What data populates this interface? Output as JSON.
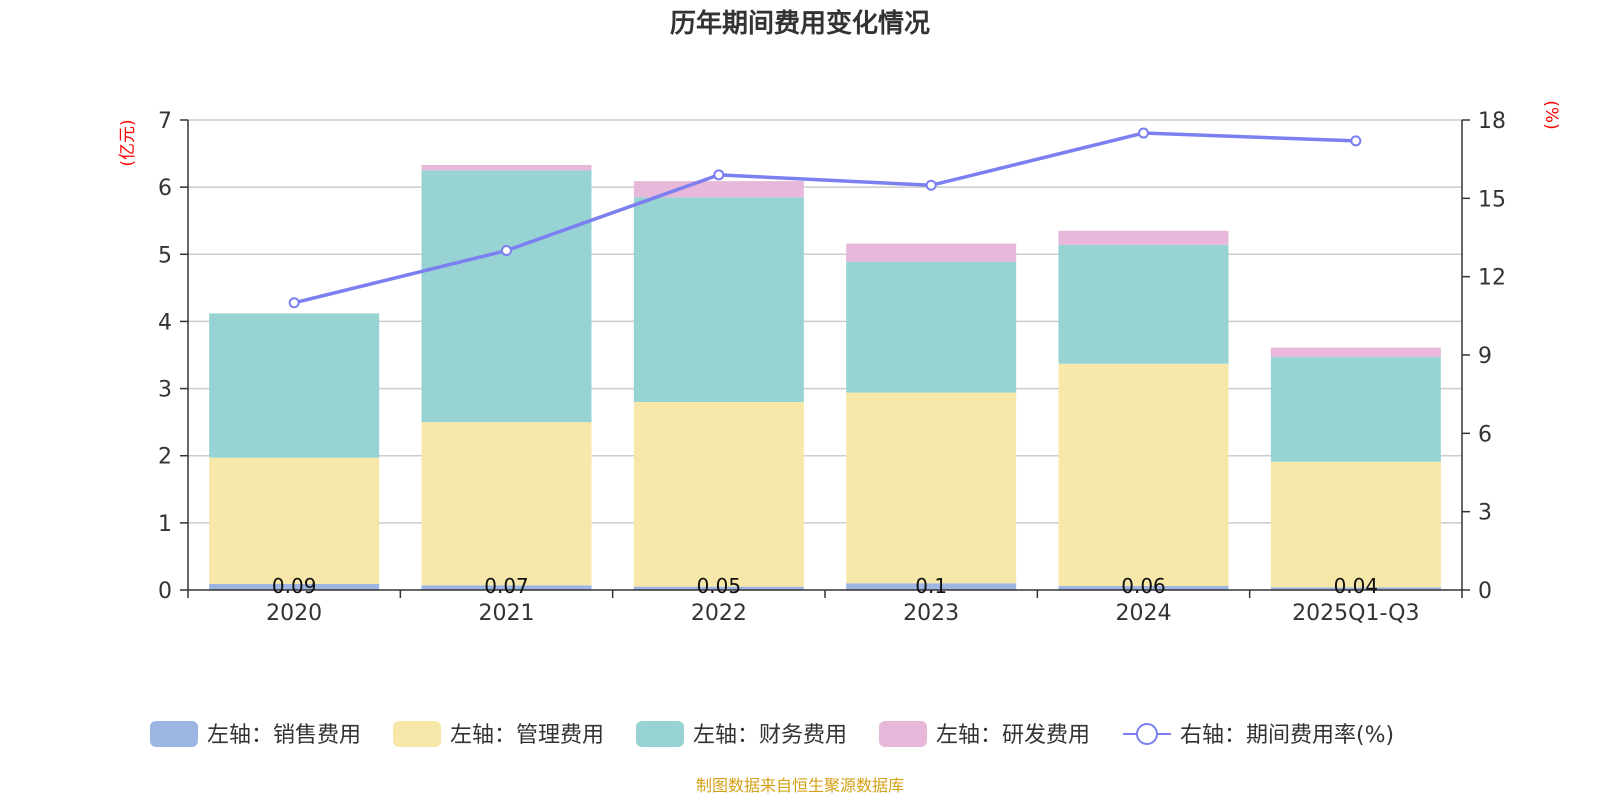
{
  "chart_data": {
    "type": "bar",
    "title": "历年期间费用变化情况",
    "categories": [
      "2020",
      "2021",
      "2022",
      "2023",
      "2024",
      "2025Q1-Q3"
    ],
    "left_axis": {
      "unit": "(亿元)",
      "ylim": [
        0,
        7
      ],
      "ticks": [
        "0",
        "1",
        "2",
        "3",
        "4",
        "5",
        "6",
        "7"
      ]
    },
    "right_axis": {
      "unit": "(%)",
      "ylim": [
        0,
        18
      ],
      "ticks": [
        "0",
        "3",
        "6",
        "9",
        "12",
        "15",
        "18"
      ]
    },
    "series": [
      {
        "name": "左轴：销售费用",
        "axis": "left",
        "stack": true,
        "color": "#9db5e2",
        "values": [
          0.09,
          0.07,
          0.05,
          0.1,
          0.06,
          0.04
        ],
        "labels": [
          "0.09",
          "0.07",
          "0.05",
          "0.1",
          "0.06",
          "0.04"
        ]
      },
      {
        "name": "左轴：管理费用",
        "axis": "left",
        "stack": true,
        "color": "#f7e7a8",
        "values": [
          1.88,
          2.43,
          2.75,
          2.84,
          3.31,
          1.87
        ]
      },
      {
        "name": "左轴：财务费用",
        "axis": "left",
        "stack": true,
        "color": "#98d3d4",
        "values": [
          2.15,
          3.75,
          3.05,
          1.95,
          1.77,
          1.56
        ]
      },
      {
        "name": "左轴：研发费用",
        "axis": "left",
        "stack": true,
        "color": "#e7b8d9",
        "values": [
          0.0,
          0.08,
          0.24,
          0.27,
          0.21,
          0.14
        ]
      },
      {
        "name": "右轴：期间费用率(%)",
        "axis": "right",
        "type": "line",
        "color": "#7b7ff0",
        "values": [
          11.0,
          13.0,
          15.9,
          15.5,
          17.5,
          17.2
        ]
      }
    ],
    "legend_position": "bottom-center",
    "grid": true
  },
  "source_note": "制图数据来自恒生聚源数据库"
}
